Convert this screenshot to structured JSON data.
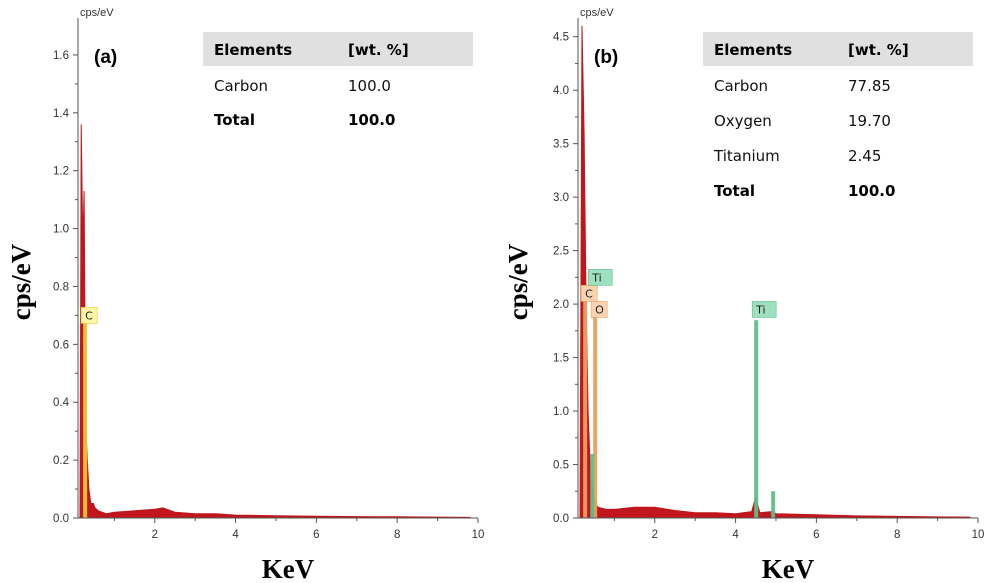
{
  "chart_data": [
    {
      "type": "bar",
      "panel_label": "(a)",
      "unit_label": "cps/eV",
      "xlabel": "KeV",
      "ylabel": "cps/eV",
      "xlim": [
        0.1,
        10
      ],
      "ylim": [
        0,
        1.7
      ],
      "x_ticks": [
        2,
        4,
        6,
        8,
        10
      ],
      "y_ticks": [
        0.0,
        0.2,
        0.4,
        0.6,
        0.8,
        1.0,
        1.2,
        1.4,
        1.6
      ],
      "y_tick_labels": [
        "0.0",
        "0.2",
        "0.4",
        "0.6",
        "0.8",
        "1.0",
        "1.2",
        "1.4",
        "1.6"
      ],
      "spectrum": [
        [
          0.15,
          0.0
        ],
        [
          0.18,
          1.36
        ],
        [
          0.22,
          0.95
        ],
        [
          0.25,
          1.13
        ],
        [
          0.28,
          0.5
        ],
        [
          0.3,
          0.3
        ],
        [
          0.33,
          0.2
        ],
        [
          0.37,
          0.1
        ],
        [
          0.42,
          0.05
        ],
        [
          0.48,
          0.05
        ],
        [
          0.52,
          0.035
        ],
        [
          0.6,
          0.025
        ],
        [
          0.8,
          0.015
        ],
        [
          1.0,
          0.02
        ],
        [
          1.5,
          0.025
        ],
        [
          2.0,
          0.03
        ],
        [
          2.2,
          0.035
        ],
        [
          2.5,
          0.02
        ],
        [
          3.0,
          0.015
        ],
        [
          3.5,
          0.015
        ],
        [
          4.0,
          0.01
        ],
        [
          5.0,
          0.008
        ],
        [
          6.0,
          0.006
        ],
        [
          7.0,
          0.005
        ],
        [
          8.0,
          0.004
        ],
        [
          9.0,
          0.003
        ],
        [
          9.8,
          0.002
        ]
      ],
      "peaks": [
        {
          "element": "C",
          "energy": 0.277,
          "height": 0.69,
          "color": "#e8c830",
          "label_bg": "#fff6a6",
          "label_y": 0.7
        }
      ],
      "table": {
        "headers": [
          "Elements",
          "[wt. %]"
        ],
        "rows": [
          [
            "Carbon",
            "100.0"
          ]
        ],
        "total": [
          "Total",
          "100.0"
        ]
      }
    },
    {
      "type": "bar",
      "panel_label": "(b)",
      "unit_label": "cps/eV",
      "xlabel": "KeV",
      "ylabel": "cps/eV",
      "xlim": [
        0.1,
        10
      ],
      "ylim": [
        0,
        4.6
      ],
      "x_ticks": [
        2,
        4,
        6,
        8,
        10
      ],
      "y_ticks": [
        0.0,
        0.5,
        1.0,
        1.5,
        2.0,
        2.5,
        3.0,
        3.5,
        4.0,
        4.5
      ],
      "y_tick_labels": [
        "0.0",
        "0.5",
        "1.0",
        "1.5",
        "2.0",
        "2.5",
        "3.0",
        "3.5",
        "4.0",
        "4.5"
      ],
      "spectrum": [
        [
          0.15,
          0.0
        ],
        [
          0.2,
          4.6
        ],
        [
          0.25,
          3.6
        ],
        [
          0.3,
          2.0
        ],
        [
          0.35,
          1.0
        ],
        [
          0.4,
          0.5
        ],
        [
          0.45,
          0.3
        ],
        [
          0.5,
          0.2
        ],
        [
          0.55,
          0.12
        ],
        [
          0.6,
          0.1
        ],
        [
          0.8,
          0.08
        ],
        [
          1.0,
          0.08
        ],
        [
          1.5,
          0.1
        ],
        [
          2.0,
          0.1
        ],
        [
          2.5,
          0.07
        ],
        [
          3.0,
          0.05
        ],
        [
          3.5,
          0.05
        ],
        [
          4.0,
          0.04
        ],
        [
          4.4,
          0.06
        ],
        [
          4.5,
          0.2
        ],
        [
          4.55,
          0.12
        ],
        [
          4.6,
          0.05
        ],
        [
          4.9,
          0.06
        ],
        [
          5.0,
          0.04
        ],
        [
          6.0,
          0.03
        ],
        [
          7.0,
          0.02
        ],
        [
          8.0,
          0.015
        ],
        [
          9.0,
          0.01
        ],
        [
          9.8,
          0.008
        ]
      ],
      "peaks": [
        {
          "element": "C",
          "energy": 0.277,
          "height": 2.05,
          "color": "#e8a060",
          "label_bg": "#fcd3b0",
          "label_y": 2.1
        },
        {
          "element": "O",
          "energy": 0.525,
          "height": 1.9,
          "color": "#e8a060",
          "label_bg": "#fcd3b0",
          "label_y": 1.95
        },
        {
          "element": "Ti",
          "energy": 0.452,
          "height": 0.6,
          "color": "#5fbf8a",
          "label_bg": "#9ee0c0",
          "label_y": 2.25
        },
        {
          "element": "Ti",
          "energy": 4.51,
          "height": 1.85,
          "color": "#5fbf8a",
          "label_bg": "#9ee0c0",
          "label_y": 1.95
        },
        {
          "element": "",
          "energy": 4.93,
          "height": 0.25,
          "color": "#5fbf8a",
          "label_bg": "",
          "label_y": 0
        }
      ],
      "table": {
        "headers": [
          "Elements",
          "[wt. %]"
        ],
        "rows": [
          [
            "Carbon",
            "77.85"
          ],
          [
            "Oxygen",
            "19.70"
          ],
          [
            "Titanium",
            "2.45"
          ]
        ],
        "total": [
          "Total",
          "100.0"
        ]
      }
    }
  ],
  "colors": {
    "spectrum": "#c0171c",
    "table_header_bg": "#e0e0e0",
    "axis": "#555555"
  }
}
